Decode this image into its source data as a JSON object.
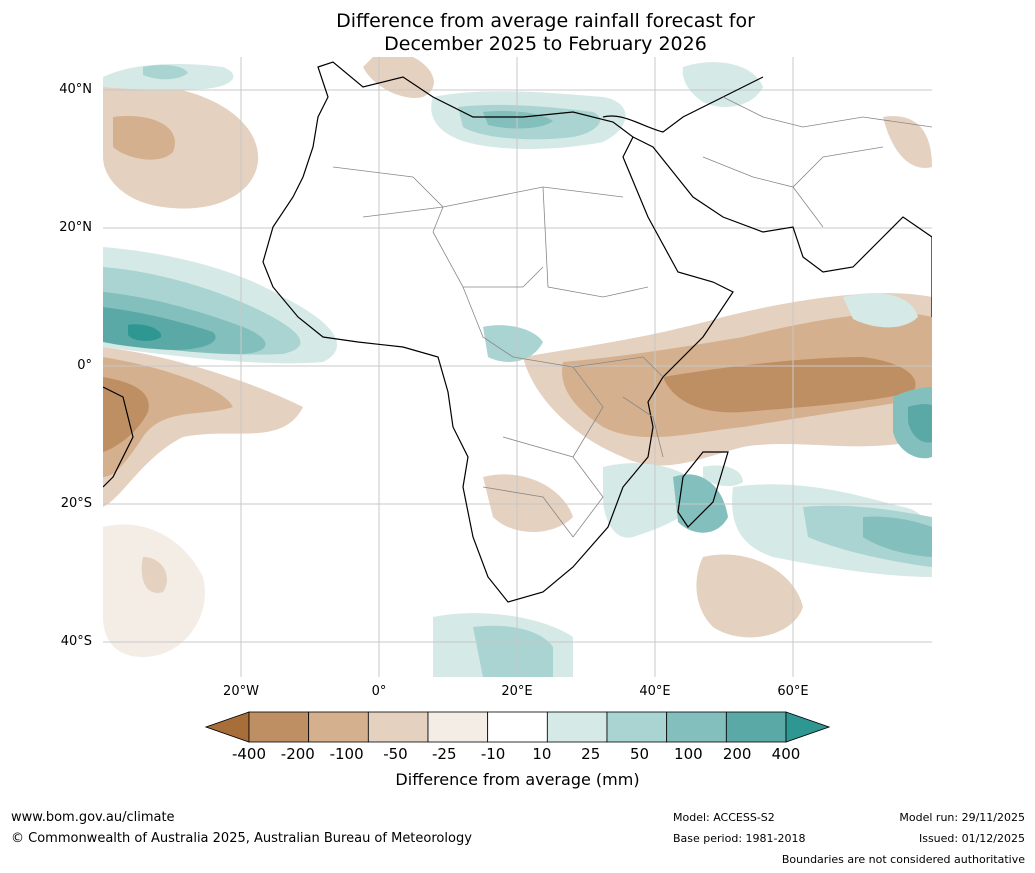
{
  "title": {
    "line1": "Difference from average rainfall forecast for",
    "line2": "December 2025 to February 2026"
  },
  "axes": {
    "lat_labels": [
      "40°N",
      "20°N",
      "0°",
      "20°S",
      "40°S"
    ],
    "lon_labels": [
      "20°W",
      "0°",
      "20°E",
      "40°E",
      "60°E"
    ]
  },
  "colorbar": {
    "ticks": [
      "-400",
      "-200",
      "-100",
      "-50",
      "-25",
      "-10",
      "10",
      "25",
      "50",
      "100",
      "200",
      "400"
    ],
    "colors": [
      "#a86e3a",
      "#bf8f64",
      "#d4b08e",
      "#e5d1bf",
      "#f3ede6",
      "#ffffff",
      "#d5e9e7",
      "#a9d4d1",
      "#82bfbd",
      "#5aa9a6",
      "#2f9792"
    ],
    "title": "Difference from average (mm)"
  },
  "footer": {
    "url": "www.bom.gov.au/climate",
    "copyright": "© Commonwealth of Australia 2025, Australian Bureau of Meteorology",
    "model": "Model: ACCESS-S2",
    "base_period": "Base period: 1981-2018",
    "model_run": "Model run: 29/11/2025",
    "issued": "Issued: 01/12/2025",
    "disclaimer": "Boundaries are not considered authoritative"
  }
}
